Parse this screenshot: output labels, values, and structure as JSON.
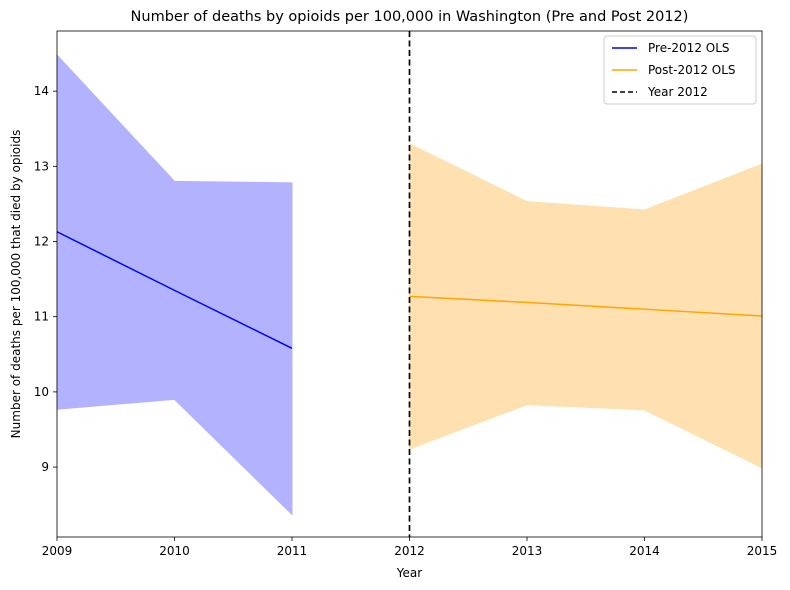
{
  "chart_data": {
    "type": "line",
    "title": "Number of deaths by opioids per 100,000 in Washington (Pre and Post 2012)",
    "xlabel": "Year",
    "ylabel": "Number of deaths per 100,000 that died by opioids",
    "xlim": [
      2009,
      2015
    ],
    "ylim": [
      8.07,
      14.8
    ],
    "xticks": [
      "2009",
      "2010",
      "2011",
      "2012",
      "2013",
      "2014",
      "2015"
    ],
    "yticks": [
      "9",
      "10",
      "11",
      "12",
      "13",
      "14"
    ],
    "grid": false,
    "legend_position": "upper right",
    "series": [
      {
        "name": "Pre-2012 OLS",
        "color": "#0000ff",
        "band_color": "#b2b2ff",
        "x": [
          2009,
          2010,
          2011
        ],
        "y": [
          12.13,
          11.35,
          10.58
        ],
        "ci_lower": [
          9.77,
          9.9,
          8.37
        ],
        "ci_upper": [
          14.48,
          12.8,
          12.78
        ]
      },
      {
        "name": "Post-2012 OLS",
        "color": "#ffa500",
        "band_color": "#ffe0b0",
        "x": [
          2012,
          2013,
          2014,
          2015
        ],
        "y": [
          11.27,
          11.19,
          11.1,
          11.01
        ],
        "ci_lower": [
          9.24,
          9.83,
          9.76,
          8.99
        ],
        "ci_upper": [
          13.3,
          12.53,
          12.42,
          13.03
        ]
      }
    ],
    "vline": {
      "name": "Year 2012",
      "x": 2012,
      "color": "#000000",
      "style": "dashed"
    }
  }
}
